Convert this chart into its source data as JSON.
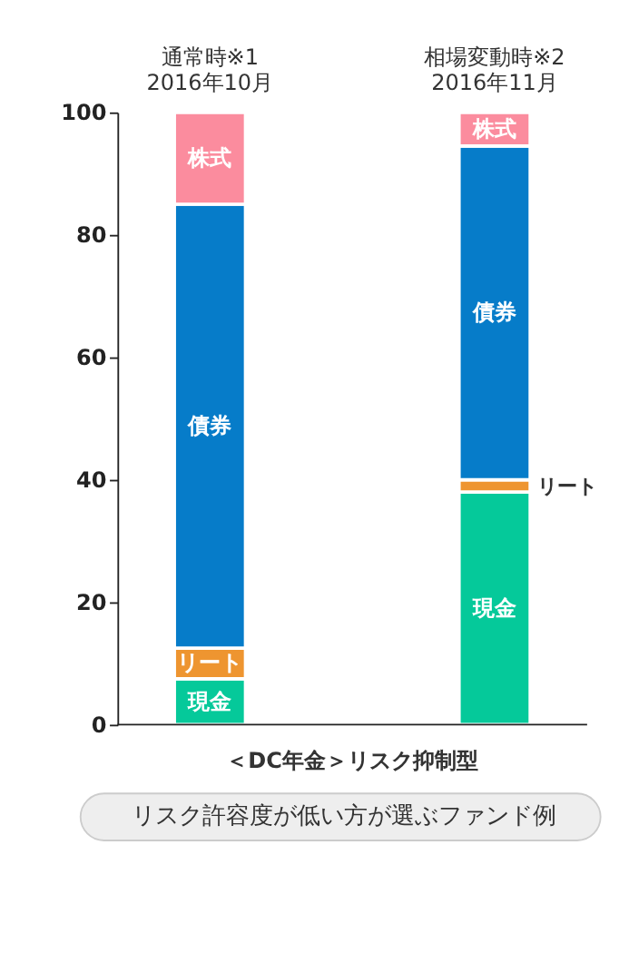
{
  "chart_data": {
    "type": "bar",
    "stacked": true,
    "categories": [
      "通常時※1\n2016年10月",
      "相場変動時※2\n2016年11月"
    ],
    "series": [
      {
        "name": "現金",
        "color": "#05c99a",
        "values": [
          7.5,
          38
        ]
      },
      {
        "name": "リート",
        "color": "#ee9530",
        "values": [
          5,
          2
        ]
      },
      {
        "name": "債券",
        "color": "#067cc9",
        "values": [
          72.5,
          54.5
        ]
      },
      {
        "name": "株式",
        "color": "#fb8c9e",
        "values": [
          15,
          5.5
        ]
      }
    ],
    "ylim": [
      0,
      100
    ],
    "yticks": [
      0,
      20,
      40,
      60,
      80,
      100
    ],
    "grid": false,
    "xlabel": "＜DC年金＞リスク抑制型",
    "annotations": [
      "リスク許容度が低い方が選ぶファンド例"
    ]
  }
}
